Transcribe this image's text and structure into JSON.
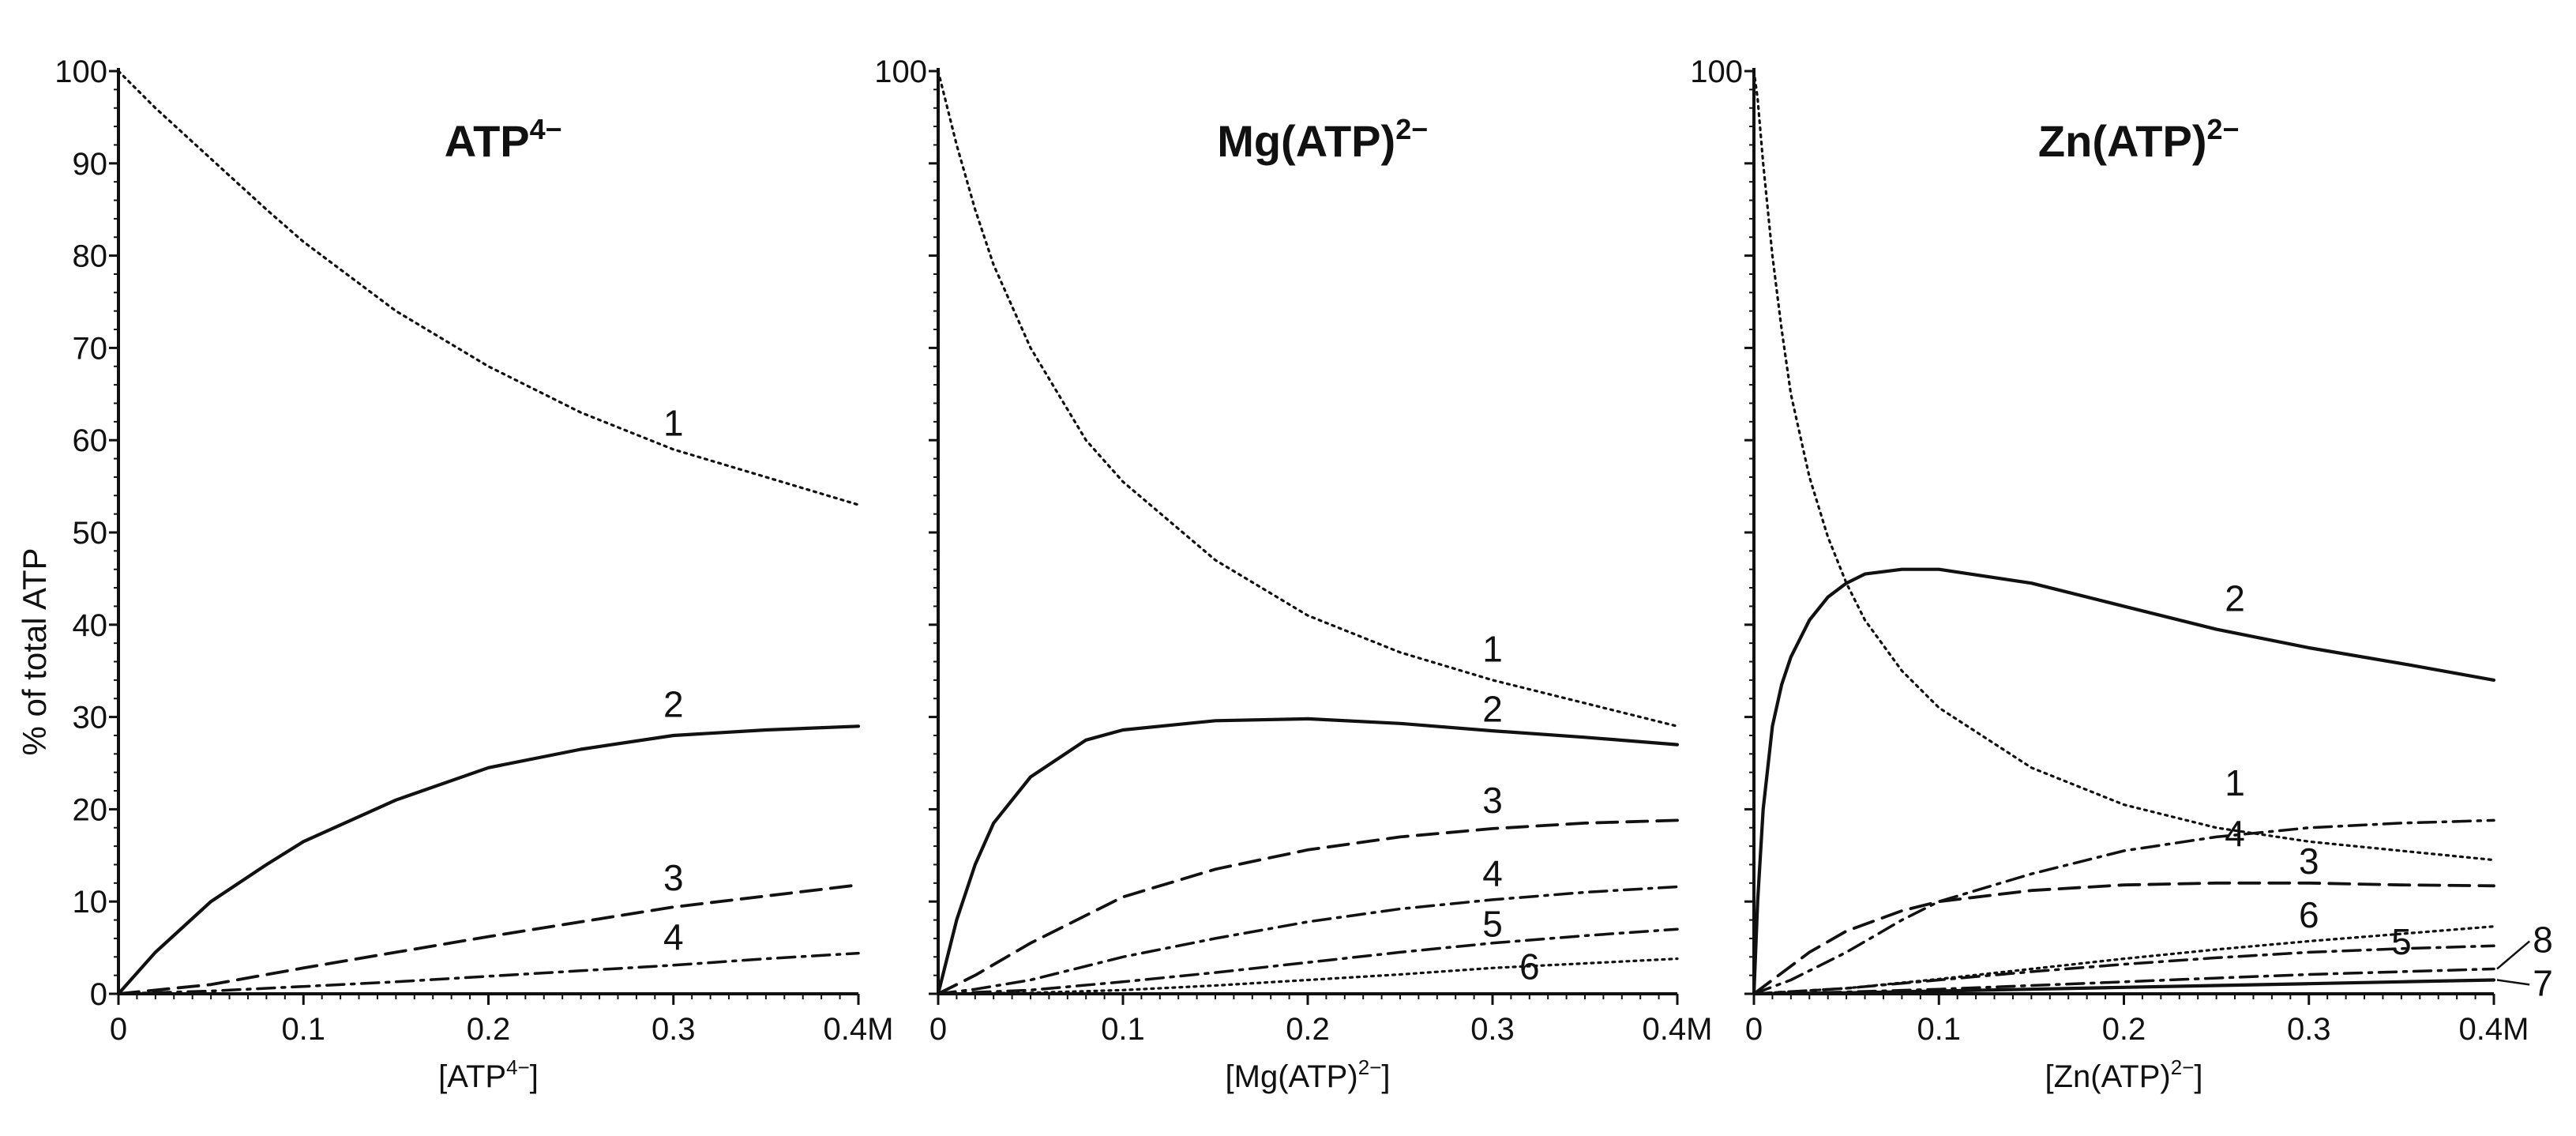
{
  "figure": {
    "ylabel": "% of total ATP"
  },
  "chart_data": [
    {
      "type": "line",
      "title_main": "ATP",
      "title_sup": "4−",
      "xlabel_main": "[ATP",
      "xlabel_sup": "4−",
      "xlabel_close": "]",
      "xlim": [
        0,
        0.4
      ],
      "ylim": [
        0,
        100
      ],
      "x_ticks": [
        0,
        0.1,
        0.2,
        0.3,
        0.4
      ],
      "x_tick_labels": [
        "0",
        "0.1",
        "0.2",
        "0.3",
        "0.4M"
      ],
      "y_ticks": [
        0,
        10,
        20,
        30,
        40,
        50,
        60,
        70,
        80,
        90,
        100
      ],
      "y_tick_labels": [
        "0",
        "10",
        "20",
        "30",
        "40",
        "50",
        "60",
        "70",
        "80",
        "90",
        "100"
      ],
      "series": [
        {
          "name": "1",
          "style": "dotted",
          "label_at": [
            0.3,
            60.5
          ],
          "x": [
            0,
            0.02,
            0.05,
            0.08,
            0.1,
            0.15,
            0.2,
            0.25,
            0.3,
            0.35,
            0.4
          ],
          "y": [
            100,
            96,
            90.5,
            85,
            81.5,
            74,
            68,
            63,
            59,
            56,
            53
          ]
        },
        {
          "name": "2",
          "style": "solid",
          "label_at": [
            0.3,
            30
          ],
          "x": [
            0,
            0.02,
            0.05,
            0.08,
            0.1,
            0.15,
            0.2,
            0.25,
            0.3,
            0.35,
            0.4
          ],
          "y": [
            0,
            4.5,
            10,
            14,
            16.5,
            21,
            24.5,
            26.5,
            28,
            28.6,
            29
          ]
        },
        {
          "name": "3",
          "style": "dashed",
          "label_at": [
            0.3,
            11.2
          ],
          "x": [
            0,
            0.05,
            0.1,
            0.15,
            0.2,
            0.25,
            0.3,
            0.35,
            0.4
          ],
          "y": [
            0,
            1,
            2.8,
            4.5,
            6.2,
            7.8,
            9.4,
            10.6,
            11.8
          ]
        },
        {
          "name": "4",
          "style": "dashdot",
          "label_at": [
            0.3,
            4.8
          ],
          "x": [
            0,
            0.05,
            0.1,
            0.15,
            0.2,
            0.25,
            0.3,
            0.35,
            0.4
          ],
          "y": [
            0,
            0.3,
            0.8,
            1.3,
            1.9,
            2.5,
            3.1,
            3.8,
            4.4
          ]
        }
      ],
      "callouts": []
    },
    {
      "type": "line",
      "title_main": "Mg(ATP)",
      "title_sup": "2−",
      "xlabel_main": "[Mg(ATP)",
      "xlabel_sup": "2−",
      "xlabel_close": "]",
      "xlim": [
        0,
        0.4
      ],
      "ylim": [
        0,
        100
      ],
      "x_ticks": [
        0,
        0.1,
        0.2,
        0.3,
        0.4
      ],
      "x_tick_labels": [
        "0",
        "0.1",
        "0.2",
        "0.3",
        "0.4M"
      ],
      "y_ticks": [
        0,
        10,
        20,
        30,
        40,
        50,
        60,
        70,
        80,
        90,
        100
      ],
      "y_tick_labels": [
        "",
        "",
        "",
        "",
        "",
        "",
        "",
        "",
        "",
        "",
        "100"
      ],
      "series": [
        {
          "name": "1",
          "style": "dotted",
          "label_at": [
            0.3,
            36
          ],
          "x": [
            0,
            0.005,
            0.01,
            0.02,
            0.03,
            0.05,
            0.08,
            0.1,
            0.15,
            0.2,
            0.25,
            0.3,
            0.35,
            0.4
          ],
          "y": [
            100,
            96,
            92,
            85,
            79,
            70,
            60,
            55.5,
            47,
            41,
            37,
            34,
            31.5,
            29
          ]
        },
        {
          "name": "2",
          "style": "solid",
          "label_at": [
            0.3,
            29.5
          ],
          "x": [
            0,
            0.01,
            0.02,
            0.03,
            0.05,
            0.08,
            0.1,
            0.15,
            0.2,
            0.25,
            0.3,
            0.35,
            0.4
          ],
          "y": [
            0,
            8,
            14,
            18.5,
            23.5,
            27.5,
            28.6,
            29.6,
            29.8,
            29.3,
            28.5,
            27.8,
            27
          ]
        },
        {
          "name": "3",
          "style": "dashed",
          "label_at": [
            0.3,
            19.6
          ],
          "x": [
            0,
            0.02,
            0.05,
            0.08,
            0.1,
            0.15,
            0.2,
            0.25,
            0.3,
            0.35,
            0.4
          ],
          "y": [
            0,
            2,
            5.5,
            8.5,
            10.5,
            13.5,
            15.6,
            17,
            17.9,
            18.5,
            18.8
          ]
        },
        {
          "name": "4",
          "style": "dashdot",
          "label_at": [
            0.3,
            11.7
          ],
          "x": [
            0,
            0.02,
            0.05,
            0.08,
            0.1,
            0.15,
            0.2,
            0.25,
            0.3,
            0.35,
            0.4
          ],
          "y": [
            0,
            0.5,
            1.5,
            3,
            4,
            6,
            7.8,
            9.2,
            10.2,
            11,
            11.6
          ]
        },
        {
          "name": "5",
          "style": "dashdot",
          "label_at": [
            0.3,
            6.2
          ],
          "x": [
            0,
            0.05,
            0.1,
            0.15,
            0.2,
            0.25,
            0.3,
            0.35,
            0.4
          ],
          "y": [
            0,
            0.4,
            1.3,
            2.3,
            3.4,
            4.5,
            5.5,
            6.3,
            7
          ]
        },
        {
          "name": "6",
          "style": "dotted",
          "label_at": [
            0.32,
            1.6
          ],
          "x": [
            0,
            0.05,
            0.1,
            0.15,
            0.2,
            0.25,
            0.3,
            0.35,
            0.4
          ],
          "y": [
            0,
            0.1,
            0.4,
            0.9,
            1.5,
            2.1,
            2.8,
            3.3,
            3.8
          ]
        }
      ],
      "callouts": []
    },
    {
      "type": "line",
      "title_main": "Zn(ATP)",
      "title_sup": "2−",
      "xlabel_main": "[Zn(ATP)",
      "xlabel_sup": "2−",
      "xlabel_close": "]",
      "xlim": [
        0,
        0.4
      ],
      "ylim": [
        0,
        100
      ],
      "x_ticks": [
        0,
        0.1,
        0.2,
        0.3,
        0.4
      ],
      "x_tick_labels": [
        "0",
        "0.1",
        "0.2",
        "0.3",
        "0.4M"
      ],
      "y_ticks": [
        0,
        10,
        20,
        30,
        40,
        50,
        60,
        70,
        80,
        90,
        100
      ],
      "y_tick_labels": [
        "",
        "",
        "",
        "",
        "",
        "",
        "",
        "",
        "",
        "",
        "100"
      ],
      "series": [
        {
          "name": "1",
          "style": "dotted",
          "label_at": [
            0.26,
            21.5
          ],
          "x": [
            0,
            0.002,
            0.005,
            0.01,
            0.015,
            0.02,
            0.03,
            0.04,
            0.05,
            0.06,
            0.08,
            0.1,
            0.15,
            0.2,
            0.25,
            0.3,
            0.35,
            0.4
          ],
          "y": [
            100,
            97,
            90,
            80,
            72,
            65,
            56,
            49.5,
            44.5,
            40.5,
            35,
            31,
            24.5,
            20.5,
            18,
            16.5,
            15.5,
            14.5
          ]
        },
        {
          "name": "2",
          "style": "solid",
          "label_at": [
            0.26,
            41.5
          ],
          "x": [
            0,
            0.002,
            0.005,
            0.01,
            0.015,
            0.02,
            0.03,
            0.04,
            0.05,
            0.06,
            0.08,
            0.1,
            0.15,
            0.2,
            0.25,
            0.3,
            0.35,
            0.4
          ],
          "y": [
            0,
            10,
            20,
            29,
            33.5,
            36.5,
            40.5,
            43,
            44.5,
            45.5,
            46,
            46,
            44.5,
            42,
            39.5,
            37.5,
            35.8,
            34
          ]
        },
        {
          "name": "3",
          "style": "dashed",
          "label_at": [
            0.3,
            13
          ],
          "x": [
            0,
            0.01,
            0.02,
            0.03,
            0.05,
            0.08,
            0.1,
            0.15,
            0.2,
            0.25,
            0.3,
            0.35,
            0.4
          ],
          "y": [
            0,
            1.5,
            3,
            4.5,
            6.8,
            9,
            10,
            11.2,
            11.8,
            12,
            12,
            11.8,
            11.7
          ]
        },
        {
          "name": "4",
          "style": "dashdot",
          "label_at": [
            0.26,
            16
          ],
          "x": [
            0,
            0.02,
            0.05,
            0.08,
            0.1,
            0.15,
            0.2,
            0.25,
            0.3,
            0.35,
            0.4
          ],
          "y": [
            0,
            1.5,
            4.5,
            8,
            10,
            13,
            15.5,
            17,
            18,
            18.5,
            18.8
          ]
        },
        {
          "name": "5",
          "style": "dashdot",
          "label_at": [
            0.35,
            4.3
          ],
          "x": [
            0,
            0.05,
            0.1,
            0.15,
            0.2,
            0.25,
            0.3,
            0.35,
            0.4
          ],
          "y": [
            0,
            0.6,
            1.5,
            2.4,
            3.2,
            3.9,
            4.5,
            4.9,
            5.2
          ]
        },
        {
          "name": "6",
          "style": "dotted",
          "label_at": [
            0.3,
            7.2
          ],
          "x": [
            0,
            0.05,
            0.1,
            0.15,
            0.2,
            0.25,
            0.3,
            0.35,
            0.4
          ],
          "y": [
            0,
            0.6,
            1.6,
            2.7,
            3.8,
            4.8,
            5.7,
            6.5,
            7.3
          ]
        },
        {
          "name": "7",
          "style": "solid",
          "label_at": null,
          "x": [
            0,
            0.05,
            0.1,
            0.15,
            0.2,
            0.25,
            0.3,
            0.35,
            0.4
          ],
          "y": [
            0,
            0.1,
            0.3,
            0.5,
            0.7,
            0.9,
            1.1,
            1.3,
            1.5
          ]
        },
        {
          "name": "8",
          "style": "dashdot",
          "label_at": null,
          "x": [
            0,
            0.05,
            0.1,
            0.15,
            0.2,
            0.25,
            0.3,
            0.35,
            0.4
          ],
          "y": [
            0,
            0.2,
            0.5,
            0.9,
            1.3,
            1.7,
            2.1,
            2.4,
            2.7
          ]
        }
      ],
      "callouts": [
        {
          "label": "8",
          "series": "8",
          "label_at": [
            0.421,
            4.5
          ]
        },
        {
          "label": "7",
          "series": "7",
          "label_at": [
            0.421,
            -0.2
          ]
        }
      ]
    }
  ]
}
